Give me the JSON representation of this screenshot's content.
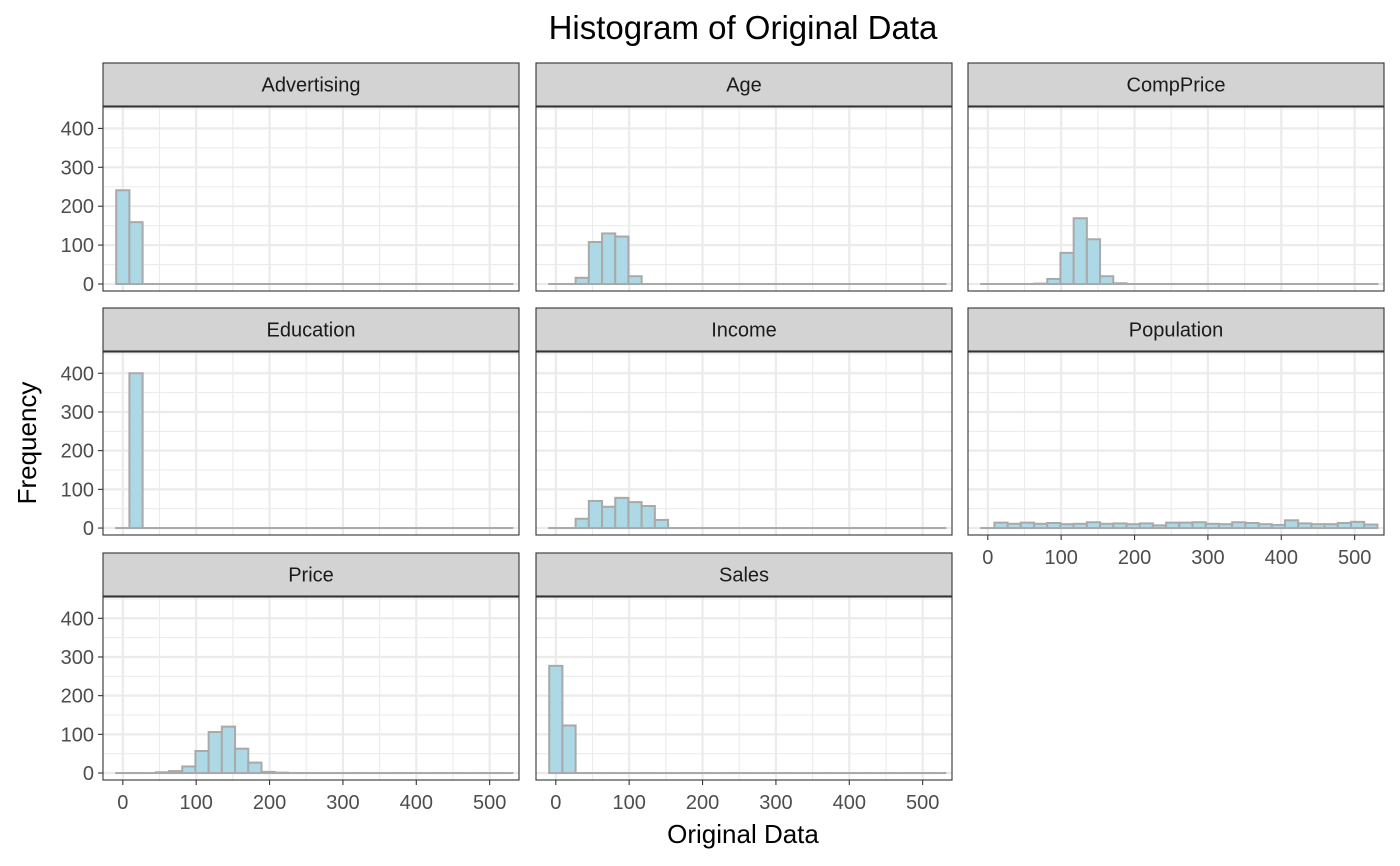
{
  "chart_data": {
    "type": "bar",
    "title": "Histogram of Original Data",
    "xlabel": "Original Data",
    "ylabel": "Frequency",
    "xlim": [
      0,
      500
    ],
    "ylim": [
      0,
      400
    ],
    "x_ticks": [
      0,
      100,
      200,
      300,
      400,
      500
    ],
    "y_ticks": [
      0,
      100,
      200,
      300,
      400
    ],
    "grid": true,
    "bar_fill": "#add8e6",
    "bar_outline": "#a9a9a9",
    "strip_fill": "#d3d3d3",
    "bin_width": 18,
    "bin_starts": [
      -9,
      9,
      27,
      45,
      63,
      81,
      99,
      117,
      135,
      153,
      171,
      189,
      207,
      225,
      243,
      261,
      279,
      297,
      315,
      333,
      351,
      369,
      387,
      405,
      423,
      441,
      459,
      477,
      495,
      513
    ],
    "panels": [
      {
        "name": "Advertising",
        "counts": [
          241,
          159,
          0,
          0,
          0,
          0,
          0,
          0,
          0,
          0,
          0,
          0,
          0,
          0,
          0,
          0,
          0,
          0,
          0,
          0,
          0,
          0,
          0,
          0,
          0,
          0,
          0,
          0,
          0,
          0
        ]
      },
      {
        "name": "Age",
        "counts": [
          0,
          0,
          16,
          108,
          130,
          122,
          20,
          0,
          0,
          0,
          0,
          0,
          0,
          0,
          0,
          0,
          0,
          0,
          0,
          0,
          0,
          0,
          0,
          0,
          0,
          0,
          0,
          0,
          0,
          0
        ]
      },
      {
        "name": "CompPrice",
        "counts": [
          0,
          0,
          0,
          0,
          1,
          13,
          80,
          169,
          115,
          20,
          2,
          0,
          0,
          0,
          0,
          0,
          0,
          0,
          0,
          0,
          0,
          0,
          0,
          0,
          0,
          0,
          0,
          0,
          0,
          0
        ]
      },
      {
        "name": "Education",
        "counts": [
          0,
          400,
          0,
          0,
          0,
          0,
          0,
          0,
          0,
          0,
          0,
          0,
          0,
          0,
          0,
          0,
          0,
          0,
          0,
          0,
          0,
          0,
          0,
          0,
          0,
          0,
          0,
          0,
          0,
          0
        ]
      },
      {
        "name": "Income",
        "counts": [
          0,
          0,
          24,
          70,
          55,
          78,
          67,
          57,
          21,
          0,
          0,
          0,
          0,
          0,
          0,
          0,
          0,
          0,
          0,
          0,
          0,
          0,
          0,
          0,
          0,
          0,
          0,
          0,
          0,
          0
        ]
      },
      {
        "name": "Population",
        "counts": [
          0,
          14,
          11,
          14,
          11,
          13,
          10,
          11,
          15,
          11,
          12,
          10,
          12,
          7,
          14,
          14,
          15,
          11,
          10,
          15,
          13,
          10,
          8,
          20,
          12,
          10,
          10,
          13,
          16,
          9
        ]
      },
      {
        "name": "Price",
        "counts": [
          0,
          0,
          0,
          2,
          5,
          17,
          57,
          106,
          120,
          63,
          27,
          3,
          1,
          0,
          0,
          0,
          0,
          0,
          0,
          0,
          0,
          0,
          0,
          0,
          0,
          0,
          0,
          0,
          0,
          0
        ]
      },
      {
        "name": "Sales",
        "counts": [
          277,
          123,
          0,
          0,
          0,
          0,
          0,
          0,
          0,
          0,
          0,
          0,
          0,
          0,
          0,
          0,
          0,
          0,
          0,
          0,
          0,
          0,
          0,
          0,
          0,
          0,
          0,
          0,
          0,
          0
        ]
      }
    ]
  }
}
